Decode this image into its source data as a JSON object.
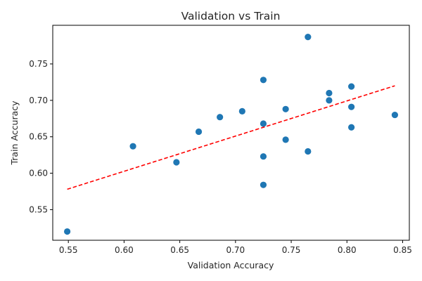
{
  "chart_data": {
    "type": "scatter",
    "title": "Validation vs Train",
    "xlabel": "Validation Accuracy",
    "ylabel": "Train Accuracy",
    "xlim": [
      0.536,
      0.856
    ],
    "ylim": [
      0.508,
      0.803
    ],
    "xticks": [
      "0.55",
      "0.60",
      "0.65",
      "0.70",
      "0.75",
      "0.80",
      "0.85"
    ],
    "yticks": [
      "0.55",
      "0.60",
      "0.65",
      "0.70",
      "0.75"
    ],
    "grid": false,
    "colors": {
      "points": "#1f77b4",
      "trend": "#ff0000"
    },
    "series": [
      {
        "x": [
          0.549,
          0.608,
          0.647,
          0.667,
          0.686,
          0.706,
          0.725,
          0.725,
          0.725,
          0.725,
          0.745,
          0.745,
          0.765,
          0.765,
          0.784,
          0.784,
          0.804,
          0.804,
          0.804,
          0.843
        ],
        "y": [
          0.52,
          0.637,
          0.615,
          0.657,
          0.677,
          0.685,
          0.728,
          0.668,
          0.623,
          0.584,
          0.688,
          0.646,
          0.787,
          0.63,
          0.71,
          0.7,
          0.719,
          0.691,
          0.663,
          0.68
        ]
      }
    ],
    "trendline": {
      "style": "dashed",
      "x": [
        0.549,
        0.843
      ],
      "y": [
        0.578,
        0.72
      ]
    }
  }
}
